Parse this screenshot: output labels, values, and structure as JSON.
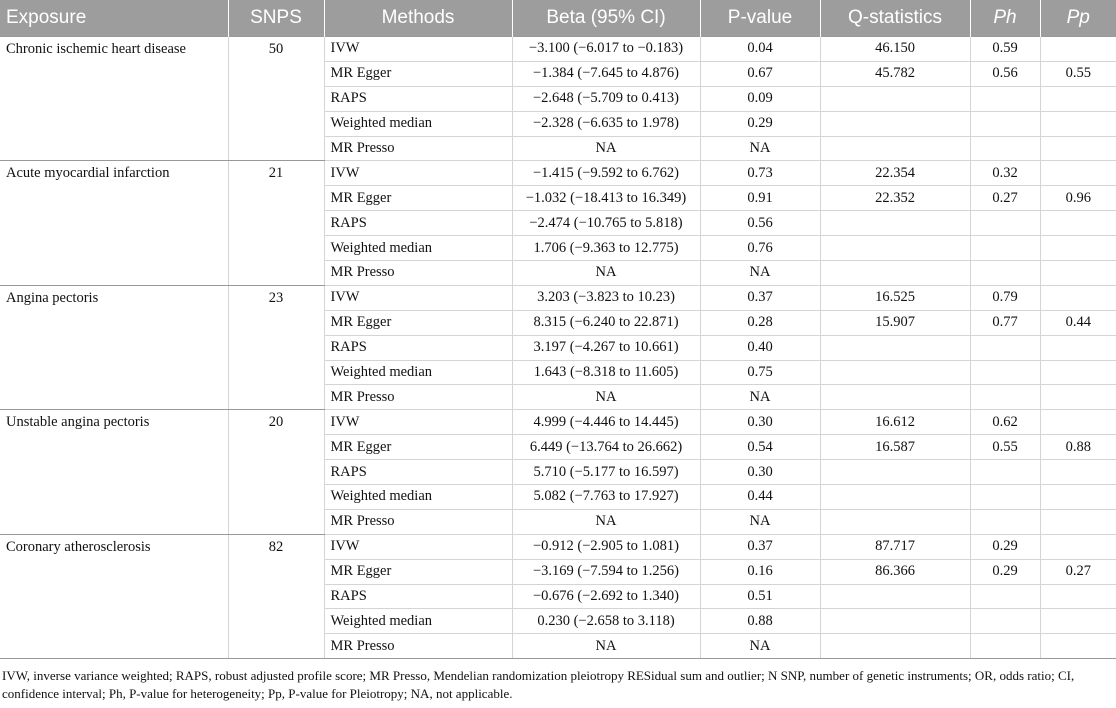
{
  "table": {
    "headers": [
      "Exposure",
      "SNPS",
      "Methods",
      "Beta (95% CI)",
      "P-value",
      "Q-statistics",
      "Ph",
      "Pp"
    ],
    "groups": [
      {
        "exposure": "Chronic ischemic heart disease",
        "snps": "50",
        "rows": [
          {
            "method": "IVW",
            "beta": "−3.100 (−6.017 to −0.183)",
            "p": "0.04",
            "q": "46.150",
            "ph": "0.59"
          },
          {
            "method": "MR Egger",
            "beta": "−1.384 (−7.645 to 4.876)",
            "p": "0.67",
            "q": "45.782",
            "ph": "0.56",
            "pp": "0.55"
          },
          {
            "method": "RAPS",
            "beta": "−2.648 (−5.709 to 0.413)",
            "p": "0.09"
          },
          {
            "method": "Weighted median",
            "beta": "−2.328 (−6.635 to 1.978)",
            "p": "0.29"
          },
          {
            "method": "MR Presso",
            "beta": "NA",
            "p": "NA"
          }
        ]
      },
      {
        "exposure": "Acute myocardial infarction",
        "snps": "21",
        "rows": [
          {
            "method": "IVW",
            "beta": "−1.415 (−9.592 to 6.762)",
            "p": "0.73",
            "q": "22.354",
            "ph": "0.32"
          },
          {
            "method": "MR Egger",
            "beta": "−1.032 (−18.413 to 16.349)",
            "p": "0.91",
            "q": "22.352",
            "ph": "0.27",
            "pp": "0.96"
          },
          {
            "method": "RAPS",
            "beta": "−2.474 (−10.765 to 5.818)",
            "p": "0.56"
          },
          {
            "method": "Weighted median",
            "beta": "1.706 (−9.363 to 12.775)",
            "p": "0.76"
          },
          {
            "method": "MR Presso",
            "beta": "NA",
            "p": "NA"
          }
        ]
      },
      {
        "exposure": "Angina pectoris",
        "snps": "23",
        "rows": [
          {
            "method": "IVW",
            "beta": "3.203 (−3.823 to 10.23)",
            "p": "0.37",
            "q": "16.525",
            "ph": "0.79"
          },
          {
            "method": "MR Egger",
            "beta": "8.315 (−6.240 to 22.871)",
            "p": "0.28",
            "q": "15.907",
            "ph": "0.77",
            "pp": "0.44"
          },
          {
            "method": "RAPS",
            "beta": "3.197 (−4.267 to 10.661)",
            "p": "0.40"
          },
          {
            "method": "Weighted median",
            "beta": "1.643 (−8.318 to 11.605)",
            "p": "0.75"
          },
          {
            "method": "MR Presso",
            "beta": "NA",
            "p": "NA"
          }
        ]
      },
      {
        "exposure": "Unstable angina pectoris",
        "snps": "20",
        "rows": [
          {
            "method": "IVW",
            "beta": "4.999 (−4.446 to 14.445)",
            "p": "0.30",
            "q": "16.612",
            "ph": "0.62"
          },
          {
            "method": "MR Egger",
            "beta": "6.449 (−13.764 to 26.662)",
            "p": "0.54",
            "q": "16.587",
            "ph": "0.55",
            "pp": "0.88"
          },
          {
            "method": "RAPS",
            "beta": "5.710 (−5.177 to 16.597)",
            "p": "0.30"
          },
          {
            "method": "Weighted median",
            "beta": "5.082 (−7.763 to 17.927)",
            "p": "0.44"
          },
          {
            "method": "MR Presso",
            "beta": "NA",
            "p": "NA"
          }
        ]
      },
      {
        "exposure": "Coronary atherosclerosis",
        "snps": "82",
        "rows": [
          {
            "method": "IVW",
            "beta": "−0.912 (−2.905 to 1.081)",
            "p": "0.37",
            "q": "87.717",
            "ph": "0.29"
          },
          {
            "method": "MR Egger",
            "beta": "−3.169 (−7.594 to 1.256)",
            "p": "0.16",
            "q": "86.366",
            "ph": "0.29",
            "pp": "0.27"
          },
          {
            "method": "RAPS",
            "beta": "−0.676 (−2.692 to 1.340)",
            "p": "0.51"
          },
          {
            "method": "Weighted median",
            "beta": "0.230 (−2.658 to 3.118)",
            "p": "0.88"
          },
          {
            "method": "MR Presso",
            "beta": "NA",
            "p": "NA"
          }
        ]
      }
    ],
    "footnote": "IVW, inverse variance weighted; RAPS, robust adjusted profile score; MR Presso, Mendelian randomization pleiotropy RESidual sum and outlier; N SNP, number of genetic instruments; OR, odds ratio; CI, confidence interval; Ph, P-value for heterogeneity; Pp, P-value for Pleiotropy; NA, not applicable."
  }
}
